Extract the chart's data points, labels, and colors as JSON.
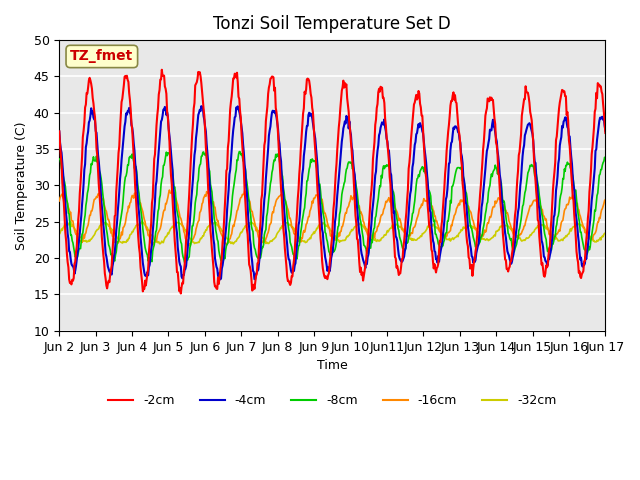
{
  "title": "Tonzi Soil Temperature Set D",
  "xlabel": "Time",
  "ylabel": "Soil Temperature (C)",
  "ylim": [
    10,
    50
  ],
  "xlim_days": [
    1,
    16
  ],
  "annotation": "TZ_fmet",
  "colors": {
    "-2cm": "#ff0000",
    "-4cm": "#0000cc",
    "-8cm": "#00cc00",
    "-16cm": "#ff8800",
    "-32cm": "#cccc00"
  },
  "legend_labels": [
    "-2cm",
    "-4cm",
    "-8cm",
    "-16cm",
    "-32cm"
  ],
  "xtick_labels": [
    "Jun 2",
    "Jun 3",
    "Jun 4",
    "Jun 5",
    "Jun 6",
    "Jun 7",
    "Jun 8",
    "Jun 9",
    "Jun 10",
    "Jun11",
    "Jun 12",
    "Jun 13",
    "Jun 14",
    "Jun 15",
    "Jun 16",
    "Jun 17"
  ],
  "background_color": "#e8e8e8",
  "grid_color": "#ffffff",
  "period_hours": 24,
  "n_days": 15,
  "pts_per_day": 48
}
